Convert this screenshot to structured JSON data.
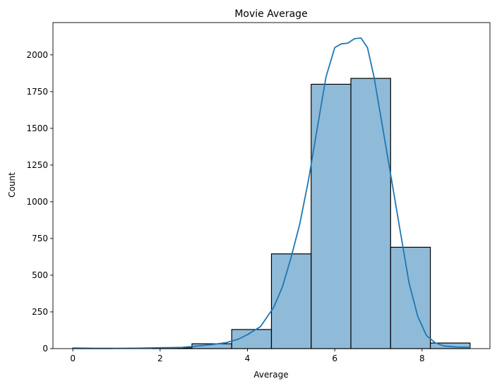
{
  "chart_data": {
    "type": "bar",
    "title": "Movie Average",
    "xlabel": "Average",
    "ylabel": "Count",
    "bins": [
      {
        "start": 0.0,
        "end": 0.91,
        "count": 2
      },
      {
        "start": 0.91,
        "end": 1.82,
        "count": 0
      },
      {
        "start": 1.82,
        "end": 2.73,
        "count": 5
      },
      {
        "start": 2.73,
        "end": 3.64,
        "count": 33
      },
      {
        "start": 3.64,
        "end": 4.55,
        "count": 130
      },
      {
        "start": 4.55,
        "end": 5.46,
        "count": 645
      },
      {
        "start": 5.46,
        "end": 6.37,
        "count": 1800
      },
      {
        "start": 6.37,
        "end": 7.28,
        "count": 1840
      },
      {
        "start": 7.28,
        "end": 8.19,
        "count": 690
      },
      {
        "start": 8.19,
        "end": 9.1,
        "count": 38
      }
    ],
    "kde": [
      [
        0.0,
        4
      ],
      [
        0.5,
        2
      ],
      [
        1.0,
        2
      ],
      [
        1.5,
        3
      ],
      [
        2.0,
        6
      ],
      [
        2.5,
        8
      ],
      [
        2.8,
        16
      ],
      [
        3.2,
        28
      ],
      [
        3.5,
        40
      ],
      [
        3.8,
        65
      ],
      [
        4.0,
        95
      ],
      [
        4.3,
        150
      ],
      [
        4.6,
        280
      ],
      [
        4.8,
        420
      ],
      [
        5.0,
        620
      ],
      [
        5.2,
        850
      ],
      [
        5.4,
        1150
      ],
      [
        5.6,
        1500
      ],
      [
        5.8,
        1850
      ],
      [
        6.0,
        2050
      ],
      [
        6.15,
        2075
      ],
      [
        6.3,
        2080
      ],
      [
        6.45,
        2110
      ],
      [
        6.6,
        2115
      ],
      [
        6.75,
        2050
      ],
      [
        6.9,
        1850
      ],
      [
        7.1,
        1500
      ],
      [
        7.3,
        1150
      ],
      [
        7.5,
        800
      ],
      [
        7.7,
        450
      ],
      [
        7.9,
        220
      ],
      [
        8.1,
        90
      ],
      [
        8.3,
        40
      ],
      [
        8.5,
        18
      ],
      [
        8.8,
        10
      ],
      [
        9.1,
        8
      ]
    ],
    "xlim": [
      -0.455,
      9.555
    ],
    "ylim": [
      0,
      2220
    ],
    "xticks": [
      0,
      2,
      4,
      6,
      8
    ],
    "yticks": [
      0,
      250,
      500,
      750,
      1000,
      1250,
      1500,
      1750,
      2000
    ],
    "colors": {
      "bar_fill": "#8fbbd9",
      "bar_edge": "#000000",
      "kde_line": "#1f77b4"
    }
  }
}
